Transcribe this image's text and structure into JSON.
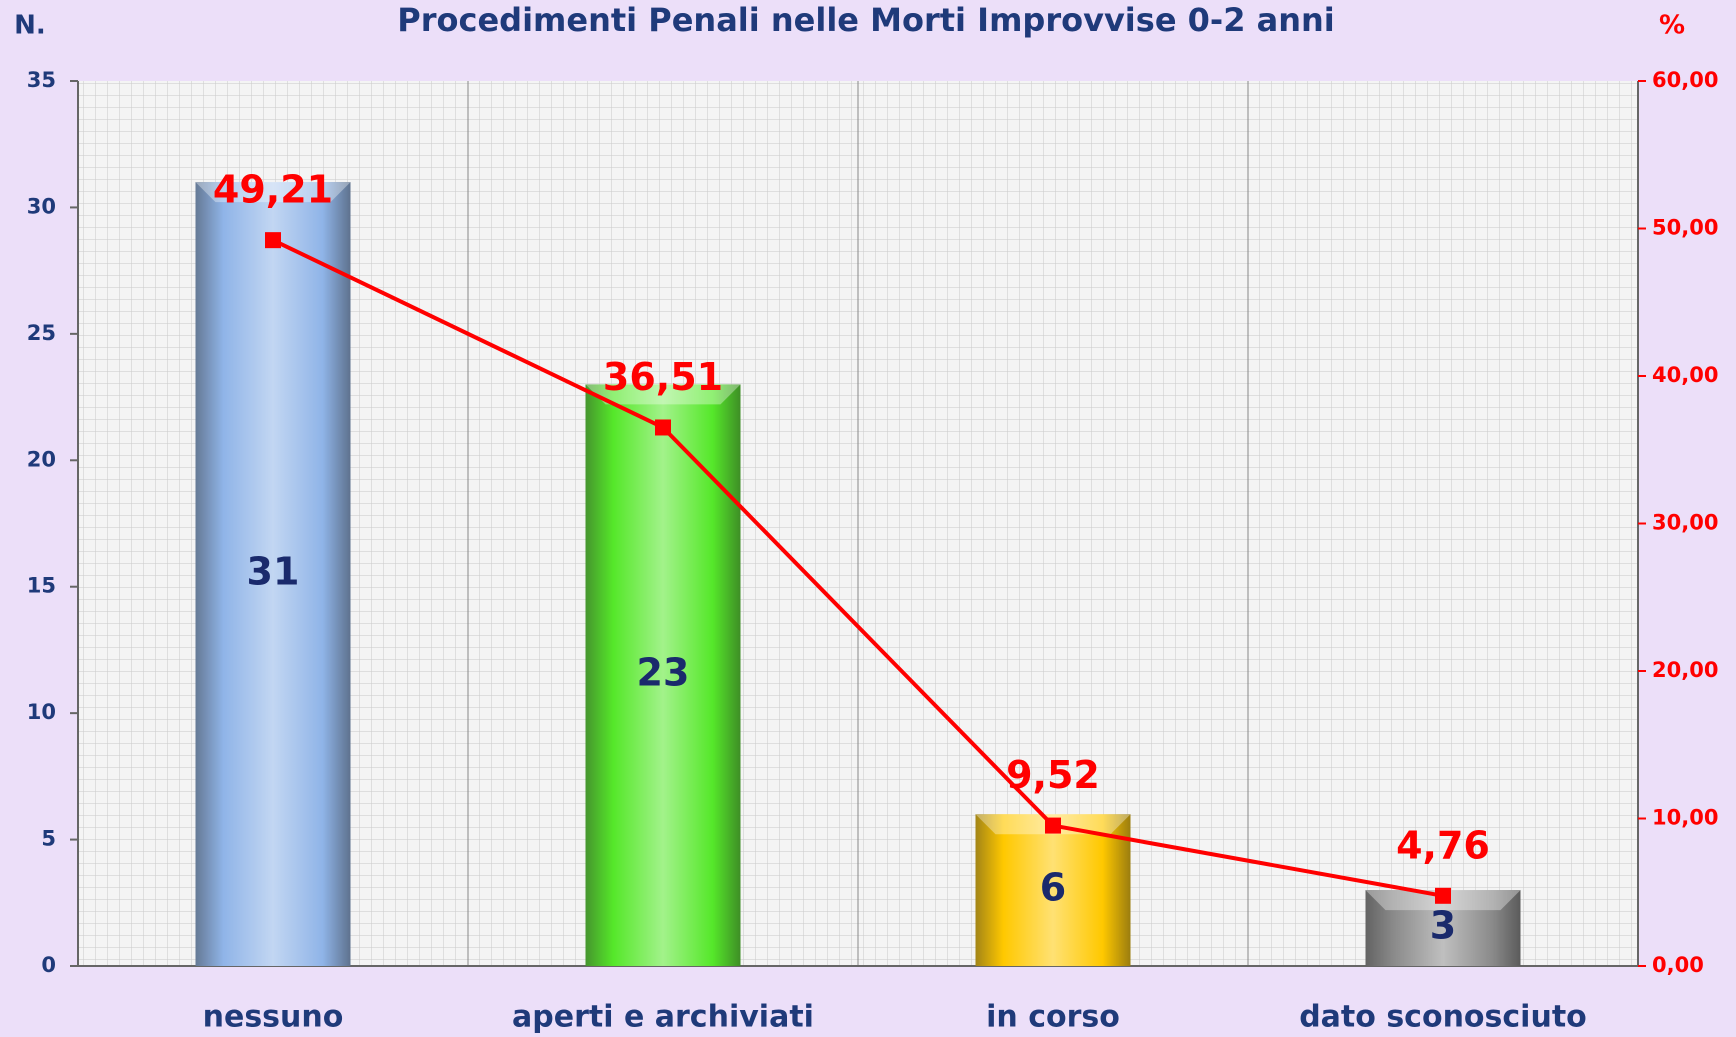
{
  "chart_data": {
    "type": "bar",
    "title": "Procedimenti Penali nelle Morti Improvvise 0-2 anni",
    "y_label": "N.",
    "y2_label": "%",
    "categories": [
      "nessuno",
      "aperti e archiviati",
      "in corso",
      "dato sconosciuto"
    ],
    "series": [
      {
        "type": "bar",
        "values": [
          31,
          23,
          6,
          3
        ],
        "colors": [
          "#8fb4e8",
          "#55e82a",
          "#ffc800",
          "#8a8a8a"
        ]
      },
      {
        "type": "line",
        "axis": "y2",
        "color": "#ff0000",
        "values": [
          49.21,
          36.51,
          9.52,
          4.76
        ],
        "value_labels": [
          "49,21",
          "36,51",
          "9,52",
          "4,76"
        ]
      }
    ],
    "ylim": [
      0,
      35
    ],
    "yticks": [
      0,
      5,
      10,
      15,
      20,
      25,
      30,
      35
    ],
    "y2lim": [
      0,
      60
    ],
    "y2ticks": [
      {
        "value": 0,
        "label": "0,00"
      },
      {
        "value": 10,
        "label": "10,00"
      },
      {
        "value": 20,
        "label": "20,00"
      },
      {
        "value": 30,
        "label": "30,00"
      },
      {
        "value": 40,
        "label": "40,00"
      },
      {
        "value": 50,
        "label": "50,00"
      },
      {
        "value": 60,
        "label": "60,00"
      }
    ],
    "grid": true
  }
}
